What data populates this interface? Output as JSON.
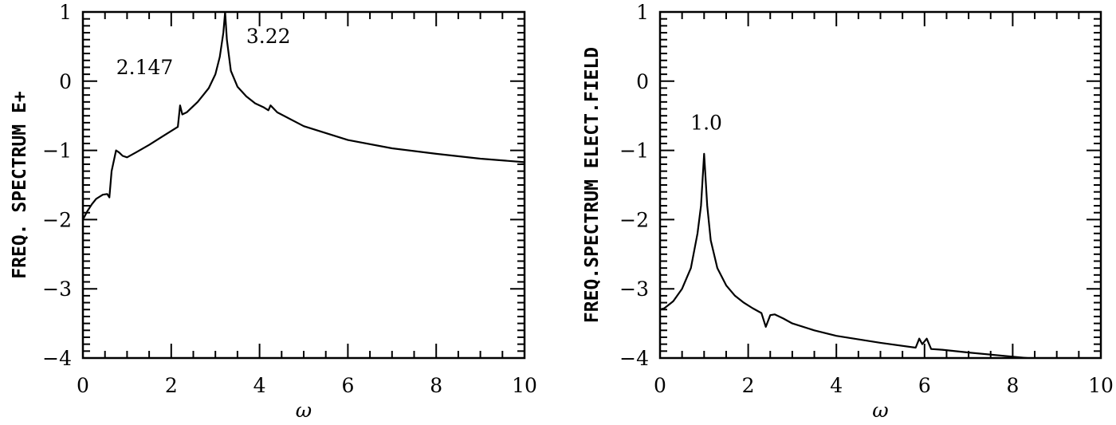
{
  "chart_data": [
    {
      "type": "line",
      "title": "",
      "xlabel": "ω",
      "ylabel": "FREQ. SPECTRUM E+",
      "xlim": [
        0,
        10
      ],
      "ylim": [
        -4,
        1
      ],
      "xticks": [
        "0",
        "2",
        "4",
        "6",
        "8",
        "10"
      ],
      "yticks": [
        "1",
        "0",
        "−1",
        "−2",
        "−3",
        "−4"
      ],
      "grid": false,
      "annotations": [
        {
          "text": "2.147",
          "x": 2.147,
          "y": -0.35
        },
        {
          "text": "3.22",
          "x": 3.22,
          "y": 1.0
        }
      ],
      "series": [
        {
          "name": "E+ spectrum",
          "x": [
            0.0,
            0.1,
            0.2,
            0.3,
            0.45,
            0.55,
            0.6,
            0.65,
            0.75,
            0.82,
            0.9,
            1.0,
            1.2,
            1.5,
            1.8,
            2.1,
            2.15,
            2.2,
            2.25,
            2.35,
            2.6,
            2.85,
            3.0,
            3.1,
            3.18,
            3.22,
            3.26,
            3.35,
            3.5,
            3.7,
            3.9,
            4.1,
            4.2,
            4.25,
            4.4,
            5.0,
            6.0,
            7.0,
            8.0,
            9.0,
            10.0
          ],
          "values": [
            -2.0,
            -1.88,
            -1.78,
            -1.7,
            -1.64,
            -1.63,
            -1.68,
            -1.3,
            -1.0,
            -1.03,
            -1.08,
            -1.1,
            -1.03,
            -0.92,
            -0.8,
            -0.68,
            -0.66,
            -0.35,
            -0.48,
            -0.45,
            -0.3,
            -0.1,
            0.1,
            0.35,
            0.7,
            1.0,
            0.6,
            0.15,
            -0.08,
            -0.22,
            -0.32,
            -0.38,
            -0.42,
            -0.35,
            -0.45,
            -0.65,
            -0.85,
            -0.97,
            -1.05,
            -1.12,
            -1.17
          ]
        }
      ]
    },
    {
      "type": "line",
      "title": "",
      "xlabel": "ω",
      "ylabel": "FREQ.SPECTRUM ELECT.FIELD",
      "xlim": [
        0,
        10
      ],
      "ylim": [
        -4,
        1
      ],
      "xticks": [
        "0",
        "2",
        "4",
        "6",
        "8",
        "10"
      ],
      "yticks": [
        "1",
        "0",
        "−1",
        "−2",
        "−3",
        "−4"
      ],
      "grid": false,
      "annotations": [
        {
          "text": "1.0",
          "x": 1.0,
          "y": -1.05
        }
      ],
      "series": [
        {
          "name": "Electric field spectrum",
          "x": [
            0.0,
            0.1,
            0.3,
            0.5,
            0.7,
            0.85,
            0.93,
            1.0,
            1.07,
            1.15,
            1.3,
            1.5,
            1.7,
            1.9,
            2.1,
            2.3,
            2.4,
            2.5,
            2.6,
            2.8,
            3.0,
            3.5,
            4.0,
            5.0,
            5.8,
            5.88,
            5.95,
            6.05,
            6.15,
            6.4,
            7.0,
            8.0,
            9.0,
            10.0
          ],
          "values": [
            -3.3,
            -3.28,
            -3.18,
            -3.0,
            -2.7,
            -2.2,
            -1.8,
            -1.05,
            -1.8,
            -2.3,
            -2.7,
            -2.95,
            -3.1,
            -3.2,
            -3.28,
            -3.35,
            -3.55,
            -3.38,
            -3.37,
            -3.43,
            -3.5,
            -3.6,
            -3.68,
            -3.78,
            -3.85,
            -3.72,
            -3.8,
            -3.72,
            -3.87,
            -3.88,
            -3.92,
            -3.98,
            -4.04,
            -4.1
          ]
        }
      ]
    }
  ],
  "panels": [
    {
      "ylabel": "FREQ. SPECTRUM E+",
      "xlabel": "ω"
    },
    {
      "ylabel": "FREQ.SPECTRUM ELECT.FIELD",
      "xlabel": "ω"
    }
  ]
}
